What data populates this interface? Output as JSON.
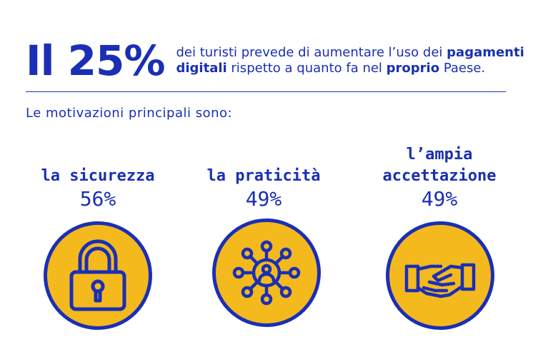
{
  "headline": {
    "big_stat": "Il 25%",
    "text_1": "dei turisti prevede di aumentare l’uso dei ",
    "bold_1": "pagamenti digitali",
    "text_2": " rispetto a quanto fa nel ",
    "bold_2": "proprio",
    "text_3": " Paese."
  },
  "subtitle": "Le motivazioni principali sono:",
  "items": [
    {
      "label_line1": "la sicurezza",
      "label_line2": "",
      "percent": "56%",
      "icon": "padlock-icon"
    },
    {
      "label_line1": "la praticità",
      "label_line2": "",
      "percent": "49%",
      "icon": "network-user-icon"
    },
    {
      "label_line1": "l’ampia",
      "label_line2": "accettazione",
      "percent": "49%",
      "icon": "handshake-icon"
    }
  ],
  "colors": {
    "primary": "#1a2fb5",
    "accent": "#f4b91d",
    "background": "#ffffff"
  }
}
